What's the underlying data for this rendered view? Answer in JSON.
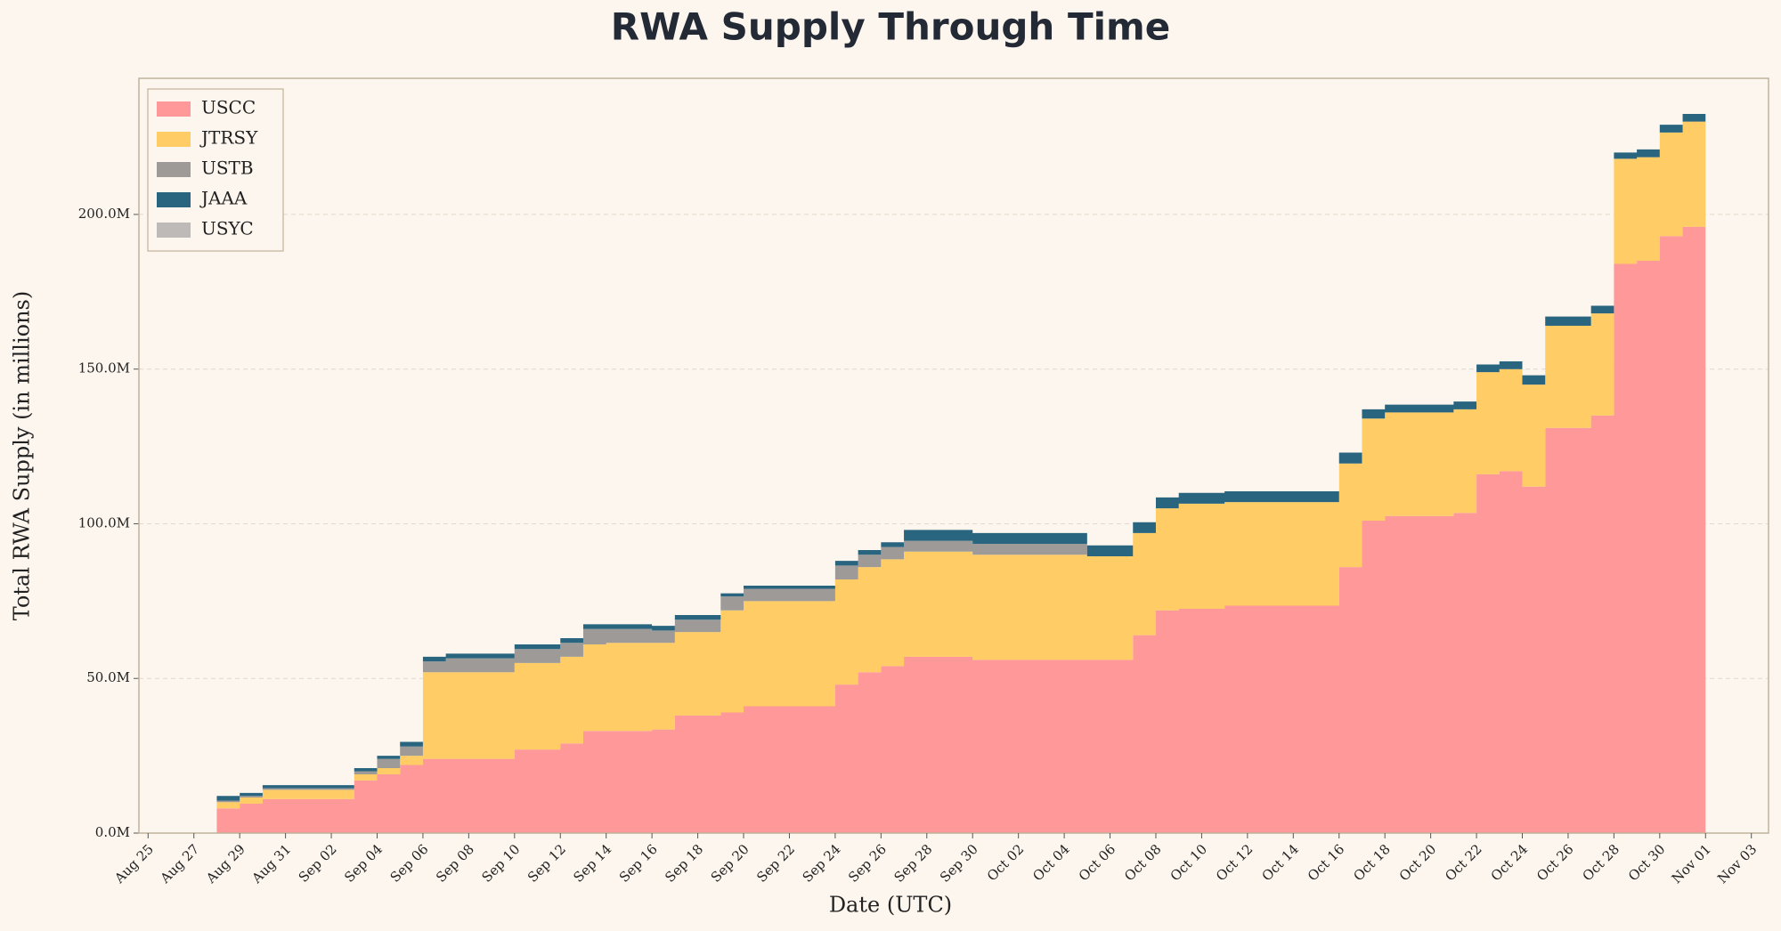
{
  "chart_data": {
    "type": "stacked_area_step",
    "title": "RWA Supply Through Time",
    "x_label": "Date (UTC)",
    "y_label": "Total RWA Supply (in millions)",
    "categories": [
      "Aug 25",
      null,
      "Aug 27",
      null,
      "Aug 29",
      null,
      "Aug 31",
      null,
      "Sep 02",
      null,
      "Sep 04",
      null,
      "Sep 06",
      null,
      "Sep 08",
      null,
      "Sep 10",
      null,
      "Sep 12",
      null,
      "Sep 14",
      null,
      "Sep 16",
      null,
      "Sep 18",
      null,
      "Sep 20",
      null,
      "Sep 22",
      null,
      "Sep 24",
      null,
      "Sep 26",
      null,
      "Sep 28",
      null,
      "Sep 30",
      null,
      "Oct 02",
      null,
      "Oct 04",
      null,
      "Oct 06",
      null,
      "Oct 08",
      null,
      "Oct 10",
      null,
      "Oct 12",
      null,
      "Oct 14",
      null,
      "Oct 16",
      null,
      "Oct 18",
      null,
      "Oct 20",
      null,
      "Oct 22",
      null,
      "Oct 24",
      null,
      "Oct 26",
      null,
      "Oct 28",
      null,
      "Oct 30",
      null,
      "Nov 01",
      null,
      "Nov 03"
    ],
    "series": [
      {
        "name": "USCC",
        "color": "#ff9999",
        "values": [
          null,
          null,
          null,
          8,
          9.5,
          11,
          11,
          11,
          11,
          17,
          19,
          22,
          24,
          24,
          24,
          24,
          27,
          27,
          29,
          33,
          33,
          33,
          33.5,
          38,
          38,
          39,
          41,
          41,
          41,
          41,
          48,
          52,
          54,
          57,
          57,
          57,
          56,
          56,
          56,
          56,
          56,
          56,
          56,
          64,
          72,
          72.5,
          72.5,
          73.5,
          73.5,
          73.5,
          73.5,
          73.5,
          86,
          101,
          102.5,
          102.5,
          102.5,
          103.5,
          116,
          117,
          112,
          131,
          131,
          135,
          184,
          185,
          193,
          196,
          null,
          null,
          null
        ]
      },
      {
        "name": "JTRSY",
        "color": "#ffcc66",
        "values": [
          null,
          null,
          null,
          2,
          2,
          3,
          3,
          3,
          3,
          2,
          2,
          3,
          28,
          28,
          28,
          28,
          28,
          28,
          28,
          28,
          28.5,
          28.5,
          28,
          27,
          27,
          33,
          34,
          34,
          34,
          34,
          34,
          34,
          34.5,
          34,
          34,
          34,
          34,
          34,
          34,
          34,
          34,
          33.5,
          33.5,
          33,
          33,
          34,
          34,
          33.5,
          33.5,
          33.5,
          33.5,
          33.5,
          33.5,
          33,
          33.5,
          33.5,
          33.5,
          33.5,
          33,
          33,
          33,
          33,
          33,
          33,
          34,
          33.5,
          33.5,
          34,
          null,
          null,
          null
        ]
      },
      {
        "name": "USTB",
        "color": "#9e9a98",
        "values": [
          null,
          null,
          null,
          0.5,
          0.5,
          0.5,
          0.5,
          0.5,
          0.5,
          1,
          3,
          3,
          3.5,
          4.5,
          4.5,
          4.5,
          4.5,
          4.5,
          4.5,
          5,
          4.5,
          4.5,
          4,
          4,
          4,
          4.5,
          4,
          4,
          4,
          4,
          4.5,
          4,
          4,
          3.5,
          3.5,
          3.5,
          3.5,
          3.5,
          3.5,
          3.5,
          3.5,
          0,
          0,
          0,
          0,
          0,
          0,
          0,
          0,
          0,
          0,
          0,
          0,
          0,
          0,
          0,
          0,
          0,
          0,
          0,
          0,
          0,
          0,
          0,
          0,
          0,
          0,
          0,
          null,
          null,
          null
        ]
      },
      {
        "name": "JAAA",
        "color": "#2a6580",
        "values": [
          null,
          null,
          null,
          1.5,
          1,
          1,
          1,
          1,
          1,
          1,
          1,
          1.5,
          1.5,
          1.5,
          1.5,
          1.5,
          1.5,
          1.5,
          1.5,
          1.5,
          1.5,
          1.5,
          1.5,
          1.5,
          1.5,
          1,
          1,
          1,
          1,
          1,
          1.5,
          1.5,
          1.5,
          3.5,
          3.5,
          3.5,
          3.5,
          3.5,
          3.5,
          3.5,
          3.5,
          3.5,
          3.5,
          3.5,
          3.5,
          3.5,
          3.5,
          3.5,
          3.5,
          3.5,
          3.5,
          3.5,
          3.5,
          3,
          2.5,
          2.5,
          2.5,
          2.5,
          2.5,
          2.5,
          3,
          3,
          3,
          2.5,
          2,
          2.5,
          2.5,
          2.5,
          null,
          null,
          null
        ]
      },
      {
        "name": "USYC",
        "color": "#bdbab7",
        "values": [
          null,
          null,
          null,
          0,
          0,
          0,
          0,
          0,
          0,
          0,
          0,
          0,
          0,
          0,
          0,
          0,
          0,
          0,
          0,
          0,
          0,
          0,
          0,
          0,
          0,
          0,
          0,
          0,
          0,
          0,
          0,
          0,
          0,
          0,
          0,
          0,
          0,
          0,
          0,
          0,
          0,
          0,
          0,
          0,
          0,
          0,
          0,
          0,
          0,
          0,
          0,
          0,
          0,
          0,
          0,
          0,
          0,
          0,
          0,
          0,
          0,
          0,
          0,
          0,
          0,
          0,
          0,
          0,
          null,
          null,
          null
        ]
      }
    ],
    "ylim": [
      0,
      244
    ],
    "yticks": [
      {
        "value": 0,
        "label": "0.0M"
      },
      {
        "value": 50,
        "label": "50.0M"
      },
      {
        "value": 100,
        "label": "100.0M"
      },
      {
        "value": 150,
        "label": "150.0M"
      },
      {
        "value": 200,
        "label": "200.0M"
      }
    ],
    "grid": true,
    "legend": "upper left"
  }
}
